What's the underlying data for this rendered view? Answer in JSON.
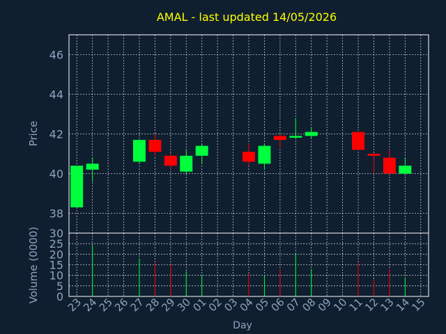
{
  "chart_data": [
    {
      "type": "candlestick",
      "title": "AMAL - last updated 14/05/2026",
      "ylabel": "Price",
      "ylim": [
        37,
        47
      ],
      "yticks": [
        38,
        40,
        42,
        44,
        46
      ],
      "grid": true,
      "colors": {
        "up": "#00ff3c",
        "down": "#ff0000",
        "background": "#0f1f30",
        "axis_text": "#8fa4bf",
        "title": "#ffff00"
      },
      "candles": [
        {
          "day": "23",
          "open": 38.3,
          "high": 40.4,
          "low": 38.3,
          "close": 40.4
        },
        {
          "day": "24",
          "open": 40.2,
          "high": 40.8,
          "low": 39.6,
          "close": 40.5
        },
        {
          "day": "25",
          "open": null,
          "high": null,
          "low": null,
          "close": null
        },
        {
          "day": "26",
          "open": null,
          "high": null,
          "low": null,
          "close": null
        },
        {
          "day": "27",
          "open": 40.6,
          "high": 41.7,
          "low": 40.5,
          "close": 41.7
        },
        {
          "day": "28",
          "open": 41.7,
          "high": 42.0,
          "low": 40.9,
          "close": 41.1
        },
        {
          "day": "29",
          "open": 40.9,
          "high": 41.0,
          "low": 40.2,
          "close": 40.4
        },
        {
          "day": "30",
          "open": 40.1,
          "high": 41.2,
          "low": 40.0,
          "close": 40.9
        },
        {
          "day": "01",
          "open": 40.9,
          "high": 41.5,
          "low": 40.5,
          "close": 41.4
        },
        {
          "day": "02",
          "open": null,
          "high": null,
          "low": null,
          "close": null
        },
        {
          "day": "03",
          "open": null,
          "high": null,
          "low": null,
          "close": null
        },
        {
          "day": "04",
          "open": 41.1,
          "high": 41.5,
          "low": 40.4,
          "close": 40.6
        },
        {
          "day": "05",
          "open": 40.5,
          "high": 41.5,
          "low": 40.2,
          "close": 41.4
        },
        {
          "day": "06",
          "open": 41.9,
          "high": 42.0,
          "low": 41.3,
          "close": 41.7
        },
        {
          "day": "07",
          "open": 41.9,
          "high": 42.8,
          "low": 41.8,
          "close": 41.9
        },
        {
          "day": "08",
          "open": 41.9,
          "high": 42.3,
          "low": 41.8,
          "close": 42.1
        },
        {
          "day": "09",
          "open": null,
          "high": null,
          "low": null,
          "close": null
        },
        {
          "day": "10",
          "open": null,
          "high": null,
          "low": null,
          "close": null
        },
        {
          "day": "11",
          "open": 42.1,
          "high": 42.1,
          "low": 41.2,
          "close": 41.2
        },
        {
          "day": "12",
          "open": 41.0,
          "high": 41.0,
          "low": 40.0,
          "close": 40.9
        },
        {
          "day": "13",
          "open": 40.8,
          "high": 41.2,
          "low": 40.0,
          "close": 40.0
        },
        {
          "day": "14",
          "open": 40.0,
          "high": 40.8,
          "low": 40.0,
          "close": 40.4
        },
        {
          "day": "15",
          "open": null,
          "high": null,
          "low": null,
          "close": null
        }
      ]
    },
    {
      "type": "bar",
      "ylabel": "Volume (0000)",
      "xlabel": "Day",
      "ylim": [
        0,
        30
      ],
      "yticks": [
        0,
        5,
        10,
        15,
        20,
        25,
        30
      ],
      "categories": [
        "23",
        "24",
        "25",
        "26",
        "27",
        "28",
        "29",
        "30",
        "01",
        "02",
        "03",
        "04",
        "05",
        "06",
        "07",
        "08",
        "09",
        "10",
        "11",
        "12",
        "13",
        "14",
        "15"
      ],
      "values": [
        null,
        24,
        null,
        null,
        18,
        16,
        15,
        12,
        10,
        null,
        null,
        11,
        10,
        13,
        20,
        13,
        null,
        null,
        16,
        8,
        13,
        9,
        null
      ]
    }
  ]
}
